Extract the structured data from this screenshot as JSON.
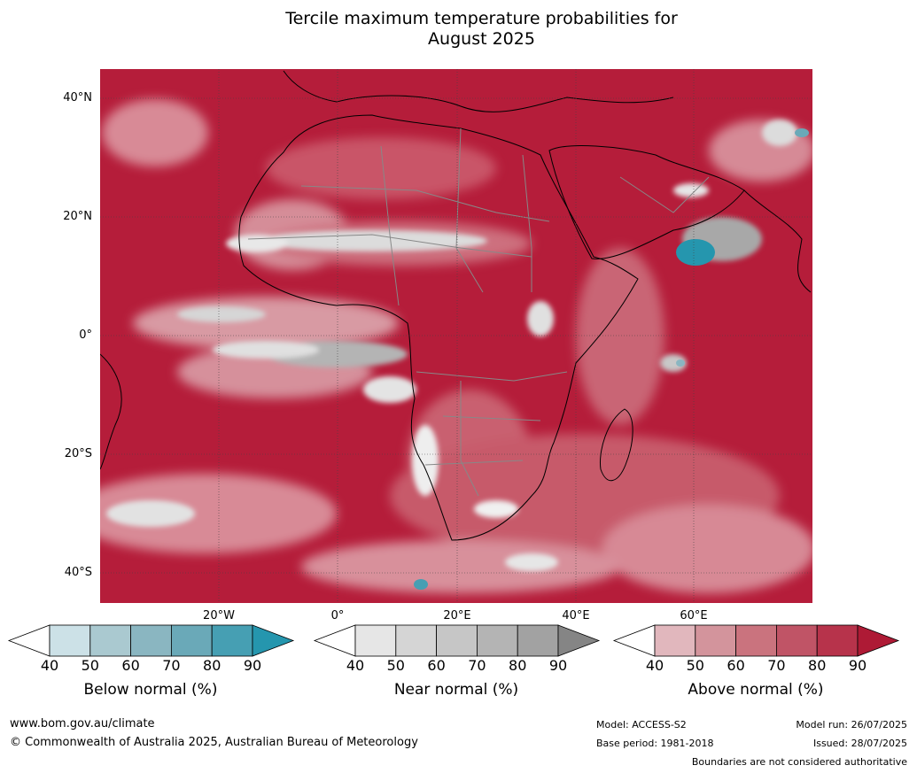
{
  "title": {
    "line1": "Tercile maximum temperature probabilities for",
    "line2": "August 2025"
  },
  "map": {
    "lat_labels": [
      "40°N",
      "20°N",
      "0°",
      "20°S",
      "40°S"
    ],
    "lon_labels": [
      "20°W",
      "0°",
      "20°E",
      "40°E",
      "60°E"
    ],
    "colors": {
      "ocean_above": "#b51d3a",
      "land_outline": "#000000",
      "border": "#888888",
      "grid": "#444444"
    }
  },
  "colorbars": [
    {
      "name": "below",
      "title": "Below normal (%)",
      "ticks": [
        "40",
        "50",
        "60",
        "70",
        "80",
        "90"
      ],
      "colors": [
        "#ffffff",
        "#cce1e7",
        "#aac9d0",
        "#8ab6c1",
        "#6aa9b8",
        "#469fb3",
        "#2596ae"
      ]
    },
    {
      "name": "near",
      "title": "Near normal (%)",
      "ticks": [
        "40",
        "50",
        "60",
        "70",
        "80",
        "90"
      ],
      "colors": [
        "#ffffff",
        "#e6e6e6",
        "#d5d5d5",
        "#c6c6c6",
        "#b4b4b4",
        "#a2a2a2",
        "#858585"
      ]
    },
    {
      "name": "above",
      "title": "Above normal (%)",
      "ticks": [
        "40",
        "50",
        "60",
        "70",
        "80",
        "90"
      ],
      "colors": [
        "#ffffff",
        "#e1b7bd",
        "#d3949c",
        "#ca737e",
        "#c05466",
        "#b7334b",
        "#ae1a35"
      ]
    }
  ],
  "footer": {
    "website": "www.bom.gov.au/climate",
    "copyright": "© Commonwealth of Australia 2025, Australian Bureau of Meteorology",
    "model": "Model: ACCESS-S2",
    "base_period": "Base period: 1981-2018",
    "model_run": "Model run: 26/07/2025",
    "issued": "Issued: 28/07/2025",
    "disclaimer": "Boundaries are not considered authoritative"
  }
}
